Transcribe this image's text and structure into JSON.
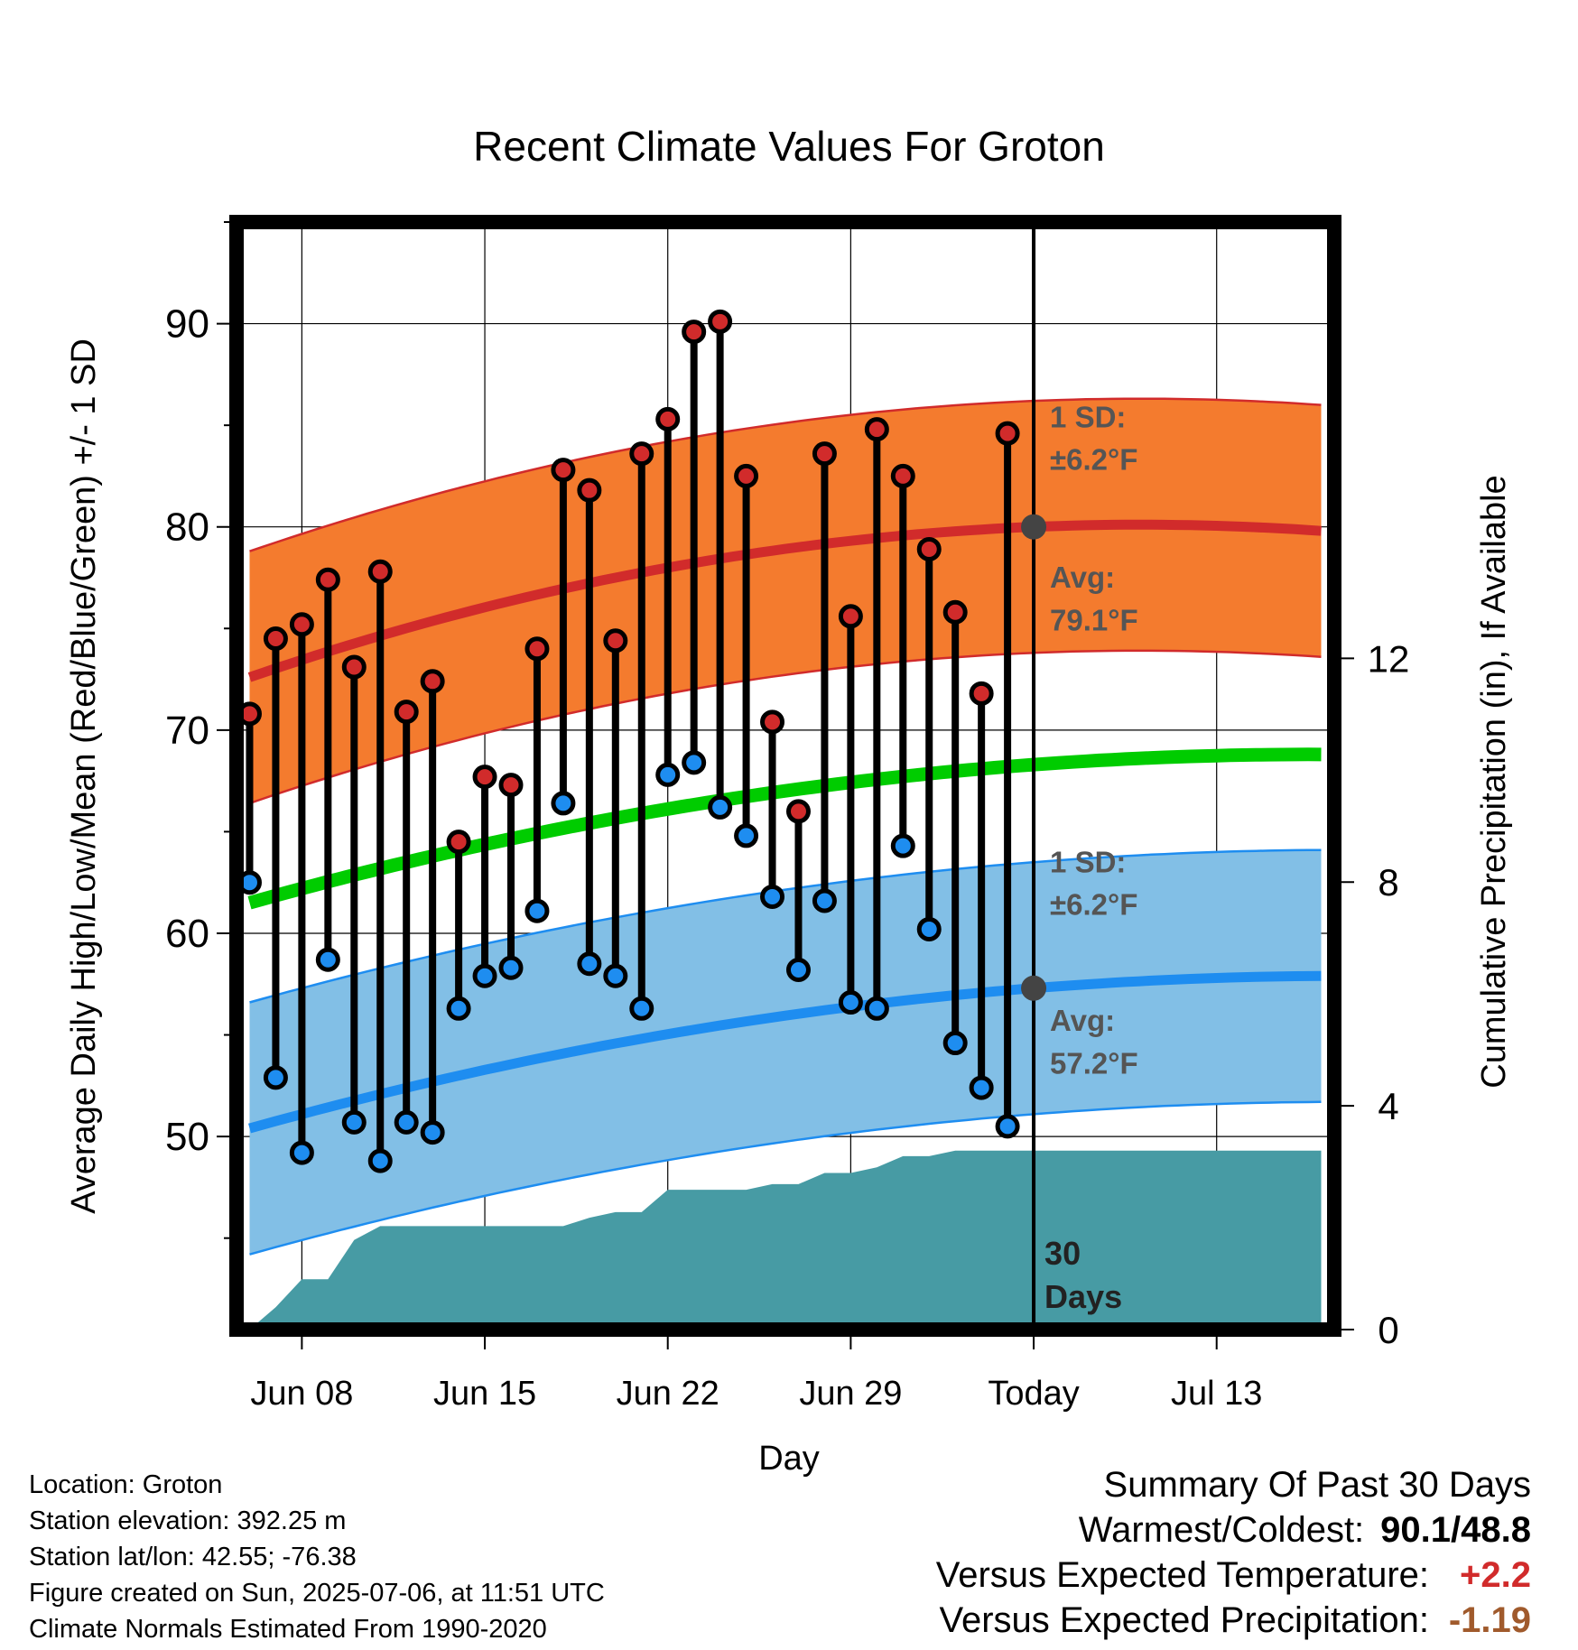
{
  "chart_data": {
    "type": "line",
    "title": "Recent Climate Values For Groton",
    "xlabel": "Day",
    "ylabel": "Average Daily High/Low/Mean (Red/Blue/Green) +/- 1 SD",
    "y2label": "Cumulative Precipitation (in), If Available",
    "ylim": [
      40.5,
      95
    ],
    "y2lim": [
      0,
      19.8
    ],
    "xlim": [
      -0.5,
      41.5
    ],
    "x_ticks": [
      {
        "x": 2,
        "label": "Jun 08"
      },
      {
        "x": 9,
        "label": "Jun 15"
      },
      {
        "x": 16,
        "label": "Jun 22"
      },
      {
        "x": 23,
        "label": "Jun 29"
      },
      {
        "x": 30,
        "label": "Today"
      },
      {
        "x": 37,
        "label": "Jul 13"
      }
    ],
    "y_ticks": [
      50,
      60,
      70,
      80,
      90
    ],
    "y2_ticks": [
      0,
      4,
      8,
      12
    ],
    "today_x": 30,
    "grid": true,
    "daily_high": [
      70.8,
      74.5,
      75.2,
      77.4,
      73.1,
      77.8,
      70.9,
      72.4,
      64.5,
      67.7,
      67.3,
      74.0,
      82.8,
      81.8,
      74.4,
      83.6,
      85.3,
      89.6,
      90.1,
      82.5,
      70.4,
      66.0,
      83.6,
      75.6,
      84.8,
      82.5,
      78.9,
      75.8,
      71.8,
      84.6
    ],
    "daily_low": [
      62.5,
      52.9,
      49.2,
      58.7,
      50.7,
      48.8,
      50.7,
      50.2,
      56.3,
      57.9,
      58.3,
      61.1,
      66.4,
      58.5,
      57.9,
      56.3,
      67.8,
      68.4,
      66.2,
      64.8,
      61.8,
      58.2,
      61.6,
      56.6,
      56.3,
      64.3,
      60.2,
      54.6,
      52.4,
      50.5
    ],
    "normal_high_mean": [
      72.6,
      80.0,
      79.8
    ],
    "normal_high_sd": 6.2,
    "normal_low_mean": [
      50.4,
      57.3,
      57.9
    ],
    "normal_low_sd": 6.2,
    "normal_mean": [
      61.5,
      68.3,
      68.8
    ],
    "normal_x": [
      0,
      30,
      41
    ],
    "cumulative_precip": [
      0.0,
      0.4,
      0.9,
      0.9,
      1.6,
      1.85,
      1.85,
      1.85,
      1.85,
      1.85,
      1.85,
      1.85,
      1.85,
      2.0,
      2.1,
      2.1,
      2.5,
      2.5,
      2.5,
      2.5,
      2.6,
      2.6,
      2.8,
      2.8,
      2.9,
      3.1,
      3.1,
      3.2,
      3.2,
      3.2,
      3.2
    ],
    "annotations": {
      "high_sd_label": "1 SD:",
      "high_sd_value": "±6.2°F",
      "high_avg_label": "Avg:",
      "high_avg_value": "79.1°F",
      "low_sd_label": "1 SD:",
      "low_sd_value": "±6.2°F",
      "low_avg_label": "Avg:",
      "low_avg_value": "57.2°F",
      "days_num": "30",
      "days_word": "Days"
    },
    "colors": {
      "high_band": "#f47b2e",
      "high_line": "#d12b2b",
      "low_band": "#82bfe6",
      "low_line": "#1e8df0",
      "mean_line": "#00cc00",
      "precip": "#479ba4",
      "high_marker": "#d12b2b",
      "low_marker": "#1e8df0",
      "annotation_text": "#555555"
    }
  },
  "footer": {
    "location": "Location: Groton",
    "elevation": "Station elevation: 392.25 m",
    "latlon": "Station lat/lon: 42.55; -76.38",
    "created": "Figure created on Sun, 2025-07-06, at 11:51 UTC",
    "normals": "Climate Normals Estimated From 1990-2020"
  },
  "summary": {
    "title": "Summary Of Past 30 Days",
    "warm_cold_label": "Warmest/Coldest:",
    "warm_cold_value": "90.1/48.8",
    "temp_label": "Versus Expected Temperature:",
    "temp_value": "+2.2",
    "precip_label": "Versus Expected Precipitation:",
    "precip_value": "-1.19"
  }
}
